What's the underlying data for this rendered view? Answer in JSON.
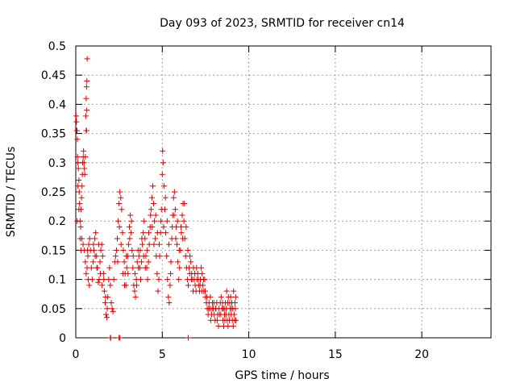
{
  "chart_data": {
    "type": "scatter",
    "title": "Day 093 of 2023, SRMTID for receiver cn14",
    "xlabel": "GPS time / hours",
    "ylabel": "SRMTID / TECUs",
    "xlim": [
      0,
      24
    ],
    "ylim": [
      0,
      0.5
    ],
    "x_ticks": [
      0,
      5,
      10,
      15,
      20
    ],
    "x_tick_labels": [
      "0",
      "5",
      "10",
      "15",
      "20"
    ],
    "y_ticks": [
      0,
      0.05,
      0.1,
      0.15,
      0.2,
      0.25,
      0.3,
      0.35,
      0.4,
      0.45,
      0.5
    ],
    "y_tick_labels": [
      "0",
      "0.05",
      "0.1",
      "0.15",
      "0.2",
      "0.25",
      "0.3",
      "0.35",
      "0.4",
      "0.45",
      "0.5"
    ],
    "grid": true,
    "marker": "+",
    "marker_color": "#dd0000",
    "series": [
      {
        "name": "cn14",
        "points": [
          [
            0.02,
            0.38
          ],
          [
            0.04,
            0.37
          ],
          [
            0.05,
            0.355
          ],
          [
            0.07,
            0.355
          ],
          [
            0.09,
            0.34
          ],
          [
            0.1,
            0.31
          ],
          [
            0.12,
            0.3
          ],
          [
            0.15,
            0.29
          ],
          [
            0.18,
            0.27
          ],
          [
            0.2,
            0.25
          ],
          [
            0.22,
            0.23
          ],
          [
            0.25,
            0.2
          ],
          [
            0.28,
            0.19
          ],
          [
            0.3,
            0.22
          ],
          [
            0.33,
            0.24
          ],
          [
            0.36,
            0.26
          ],
          [
            0.38,
            0.28
          ],
          [
            0.4,
            0.3
          ],
          [
            0.43,
            0.31
          ],
          [
            0.45,
            0.32
          ],
          [
            0.48,
            0.3
          ],
          [
            0.5,
            0.29
          ],
          [
            0.52,
            0.28
          ],
          [
            0.55,
            0.31
          ],
          [
            0.58,
            0.38
          ],
          [
            0.6,
            0.41
          ],
          [
            0.62,
            0.43
          ],
          [
            0.64,
            0.44
          ],
          [
            0.66,
            0.478
          ],
          [
            0.6,
            0.355
          ],
          [
            0.35,
            0.17
          ],
          [
            0.42,
            0.16
          ],
          [
            0.5,
            0.15
          ],
          [
            0.55,
            0.13
          ],
          [
            0.6,
            0.11
          ],
          [
            0.65,
            0.12
          ],
          [
            0.7,
            0.14
          ],
          [
            0.75,
            0.16
          ],
          [
            0.8,
            0.17
          ],
          [
            0.85,
            0.15
          ],
          [
            0.9,
            0.12
          ],
          [
            0.95,
            0.1
          ],
          [
            1.0,
            0.13
          ],
          [
            1.05,
            0.15
          ],
          [
            1.1,
            0.17
          ],
          [
            1.15,
            0.18
          ],
          [
            1.2,
            0.14
          ],
          [
            1.25,
            0.12
          ],
          [
            1.3,
            0.095
          ],
          [
            1.35,
            0.1
          ],
          [
            1.4,
            0.13
          ],
          [
            1.45,
            0.15
          ],
          [
            1.5,
            0.16
          ],
          [
            1.55,
            0.14
          ],
          [
            1.6,
            0.11
          ],
          [
            1.65,
            0.08
          ],
          [
            1.7,
            0.06
          ],
          [
            1.75,
            0.04
          ],
          [
            1.8,
            0.035
          ],
          [
            1.85,
            0.07
          ],
          [
            1.9,
            0.1
          ],
          [
            1.95,
            0.12
          ],
          [
            2.0,
            0.09
          ],
          [
            2.05,
            0.06
          ],
          [
            2.1,
            0.05
          ],
          [
            2.15,
            0.045
          ],
          [
            2.2,
            0.1
          ],
          [
            2.25,
            0.13
          ],
          [
            2.3,
            0.14
          ],
          [
            2.35,
            0.15
          ],
          [
            2.4,
            0.17
          ],
          [
            2.45,
            0.2
          ],
          [
            2.5,
            0.23
          ],
          [
            2.55,
            0.25
          ],
          [
            2.6,
            0.24
          ],
          [
            2.65,
            0.22
          ],
          [
            2.7,
            0.18
          ],
          [
            2.75,
            0.15
          ],
          [
            2.8,
            0.13
          ],
          [
            2.85,
            0.11
          ],
          [
            2.9,
            0.09
          ],
          [
            2.95,
            0.12
          ],
          [
            3.0,
            0.14
          ],
          [
            3.05,
            0.16
          ],
          [
            3.1,
            0.19
          ],
          [
            3.15,
            0.21
          ],
          [
            3.2,
            0.18
          ],
          [
            3.25,
            0.15
          ],
          [
            3.3,
            0.12
          ],
          [
            3.35,
            0.09
          ],
          [
            3.4,
            0.08
          ],
          [
            3.45,
            0.07
          ],
          [
            3.5,
            0.1
          ],
          [
            3.55,
            0.13
          ],
          [
            3.6,
            0.15
          ],
          [
            3.65,
            0.14
          ],
          [
            3.7,
            0.12
          ],
          [
            3.75,
            0.1
          ],
          [
            3.8,
            0.13
          ],
          [
            3.85,
            0.16
          ],
          [
            3.9,
            0.18
          ],
          [
            3.95,
            0.2
          ],
          [
            4.0,
            0.17
          ],
          [
            4.05,
            0.14
          ],
          [
            4.1,
            0.12
          ],
          [
            4.15,
            0.1
          ],
          [
            4.2,
            0.13
          ],
          [
            4.25,
            0.16
          ],
          [
            4.3,
            0.19
          ],
          [
            4.35,
            0.22
          ],
          [
            4.4,
            0.24
          ],
          [
            4.45,
            0.26
          ],
          [
            4.5,
            0.23
          ],
          [
            4.55,
            0.2
          ],
          [
            4.6,
            0.17
          ],
          [
            4.65,
            0.14
          ],
          [
            4.7,
            0.11
          ],
          [
            4.75,
            0.08
          ],
          [
            4.8,
            0.1
          ],
          [
            4.85,
            0.14
          ],
          [
            4.9,
            0.18
          ],
          [
            4.95,
            0.22
          ],
          [
            5.0,
            0.28
          ],
          [
            5.02,
            0.32
          ],
          [
            5.05,
            0.3
          ],
          [
            5.1,
            0.26
          ],
          [
            5.15,
            0.22
          ],
          [
            5.2,
            0.18
          ],
          [
            5.25,
            0.14
          ],
          [
            5.3,
            0.1
          ],
          [
            5.35,
            0.07
          ],
          [
            5.4,
            0.06
          ],
          [
            5.45,
            0.09
          ],
          [
            5.5,
            0.13
          ],
          [
            5.55,
            0.17
          ],
          [
            5.6,
            0.21
          ],
          [
            5.65,
            0.24
          ],
          [
            5.7,
            0.25
          ],
          [
            5.75,
            0.22
          ],
          [
            5.8,
            0.19
          ],
          [
            5.85,
            0.16
          ],
          [
            5.9,
            0.13
          ],
          [
            5.95,
            0.1
          ],
          [
            6.0,
            0.12
          ],
          [
            6.05,
            0.15
          ],
          [
            6.1,
            0.18
          ],
          [
            6.15,
            0.21
          ],
          [
            6.2,
            0.23
          ],
          [
            6.25,
            0.2
          ],
          [
            6.3,
            0.17
          ],
          [
            6.35,
            0.14
          ],
          [
            6.4,
            0.12
          ],
          [
            6.45,
            0.1
          ],
          [
            6.5,
            0.09
          ],
          [
            6.55,
            0.12
          ],
          [
            6.6,
            0.14
          ],
          [
            6.65,
            0.13
          ],
          [
            6.7,
            0.11
          ],
          [
            6.75,
            0.1
          ],
          [
            6.8,
            0.12
          ],
          [
            6.85,
            0.1
          ],
          [
            6.9,
            0.09
          ],
          [
            6.95,
            0.08
          ],
          [
            7.0,
            0.1
          ],
          [
            7.05,
            0.11
          ],
          [
            7.1,
            0.09
          ],
          [
            7.15,
            0.08
          ],
          [
            7.2,
            0.1
          ],
          [
            7.25,
            0.12
          ],
          [
            7.3,
            0.11
          ],
          [
            7.35,
            0.09
          ],
          [
            7.4,
            0.08
          ],
          [
            7.45,
            0.1
          ],
          [
            7.5,
            0.07
          ],
          [
            7.55,
            0.06
          ],
          [
            7.6,
            0.05
          ],
          [
            7.65,
            0.04
          ],
          [
            7.7,
            0.06
          ],
          [
            7.75,
            0.05
          ],
          [
            7.8,
            0.03
          ],
          [
            7.85,
            0.04
          ],
          [
            7.9,
            0.06
          ],
          [
            7.95,
            0.05
          ],
          [
            8.0,
            0.04
          ],
          [
            8.05,
            0.03
          ],
          [
            8.1,
            0.05
          ],
          [
            8.15,
            0.06
          ],
          [
            8.2,
            0.04
          ],
          [
            8.25,
            0.02
          ],
          [
            8.3,
            0.04
          ],
          [
            8.35,
            0.06
          ],
          [
            8.4,
            0.07
          ],
          [
            8.45,
            0.05
          ],
          [
            8.5,
            0.03
          ],
          [
            8.55,
            0.02
          ],
          [
            8.6,
            0.04
          ],
          [
            8.65,
            0.06
          ],
          [
            8.7,
            0.05
          ],
          [
            8.75,
            0.03
          ],
          [
            8.8,
            0.02
          ],
          [
            8.85,
            0.04
          ],
          [
            8.9,
            0.06
          ],
          [
            8.95,
            0.07
          ],
          [
            9.0,
            0.05
          ],
          [
            9.05,
            0.03
          ],
          [
            9.1,
            0.02
          ],
          [
            9.15,
            0.04
          ],
          [
            9.2,
            0.06
          ],
          [
            9.22,
            0.05
          ],
          [
            9.25,
            0.03
          ],
          [
            0.08,
            0.2
          ],
          [
            0.12,
            0.26
          ],
          [
            0.18,
            0.22
          ],
          [
            0.25,
            0.17
          ],
          [
            0.3,
            0.15
          ],
          [
            0.62,
            0.355
          ],
          [
            0.64,
            0.39
          ],
          [
            0.68,
            0.15
          ],
          [
            0.72,
            0.1
          ],
          [
            0.78,
            0.09
          ],
          [
            1.02,
            0.16
          ],
          [
            1.12,
            0.14
          ],
          [
            1.22,
            0.12
          ],
          [
            1.32,
            0.16
          ],
          [
            1.42,
            0.11
          ],
          [
            1.52,
            0.09
          ],
          [
            1.62,
            0.1
          ],
          [
            1.72,
            0.07
          ],
          [
            1.82,
            0.05
          ],
          [
            2.0,
            0.0
          ],
          [
            2.02,
            0.0
          ],
          [
            2.5,
            0.0
          ],
          [
            2.55,
            0.0
          ],
          [
            6.5,
            0.0
          ],
          [
            2.42,
            0.13
          ],
          [
            2.52,
            0.19
          ],
          [
            2.62,
            0.16
          ],
          [
            2.72,
            0.11
          ],
          [
            2.82,
            0.09
          ],
          [
            2.92,
            0.14
          ],
          [
            3.02,
            0.11
          ],
          [
            3.12,
            0.17
          ],
          [
            3.22,
            0.2
          ],
          [
            3.32,
            0.14
          ],
          [
            3.42,
            0.11
          ],
          [
            3.52,
            0.09
          ],
          [
            3.62,
            0.12
          ],
          [
            3.72,
            0.15
          ],
          [
            3.82,
            0.17
          ],
          [
            3.92,
            0.14
          ],
          [
            4.02,
            0.12
          ],
          [
            4.12,
            0.15
          ],
          [
            4.22,
            0.18
          ],
          [
            4.32,
            0.21
          ],
          [
            4.42,
            0.19
          ],
          [
            4.52,
            0.16
          ],
          [
            4.62,
            0.21
          ],
          [
            4.72,
            0.18
          ],
          [
            4.82,
            0.16
          ],
          [
            4.92,
            0.2
          ],
          [
            5.08,
            0.19
          ],
          [
            5.18,
            0.24
          ],
          [
            5.28,
            0.2
          ],
          [
            5.38,
            0.16
          ],
          [
            5.48,
            0.11
          ],
          [
            5.58,
            0.19
          ],
          [
            5.68,
            0.21
          ],
          [
            5.78,
            0.17
          ],
          [
            5.88,
            0.2
          ],
          [
            5.98,
            0.15
          ],
          [
            6.08,
            0.19
          ],
          [
            6.18,
            0.17
          ],
          [
            6.28,
            0.23
          ],
          [
            6.38,
            0.19
          ],
          [
            6.48,
            0.15
          ],
          [
            6.58,
            0.11
          ],
          [
            6.68,
            0.1
          ],
          [
            6.78,
            0.08
          ],
          [
            6.88,
            0.11
          ],
          [
            6.98,
            0.12
          ],
          [
            7.08,
            0.1
          ],
          [
            7.18,
            0.09
          ],
          [
            7.28,
            0.08
          ],
          [
            7.38,
            0.1
          ],
          [
            7.48,
            0.08
          ],
          [
            7.58,
            0.07
          ],
          [
            7.68,
            0.05
          ],
          [
            7.78,
            0.07
          ],
          [
            7.88,
            0.05
          ],
          [
            7.98,
            0.06
          ],
          [
            8.08,
            0.05
          ],
          [
            8.18,
            0.03
          ],
          [
            8.28,
            0.05
          ],
          [
            8.38,
            0.04
          ],
          [
            8.48,
            0.06
          ],
          [
            8.58,
            0.05
          ],
          [
            8.68,
            0.04
          ],
          [
            8.78,
            0.06
          ],
          [
            8.88,
            0.03
          ],
          [
            8.98,
            0.04
          ],
          [
            9.08,
            0.05
          ],
          [
            9.18,
            0.03
          ],
          [
            9.24,
            0.07
          ],
          [
            9.12,
            0.08
          ],
          [
            9.02,
            0.06
          ],
          [
            8.92,
            0.05
          ],
          [
            8.82,
            0.07
          ],
          [
            8.72,
            0.08
          ],
          [
            8.62,
            0.03
          ],
          [
            8.52,
            0.05
          ]
        ]
      }
    ]
  }
}
